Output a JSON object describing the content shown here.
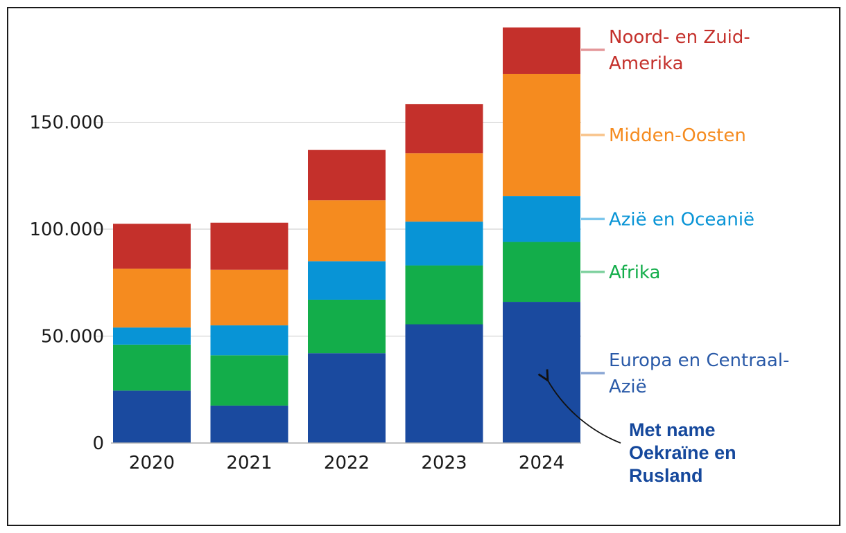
{
  "chart_data": {
    "type": "bar",
    "stacked": true,
    "categories": [
      "2020",
      "2021",
      "2022",
      "2023",
      "2024"
    ],
    "series": [
      {
        "name": "Europa en Centraal-Azië",
        "color": "#1a4a9f",
        "legend_color": "#8aa6d4",
        "values": [
          24500,
          17500,
          42000,
          55500,
          66000
        ]
      },
      {
        "name": "Afrika",
        "color": "#13ad4a",
        "legend_color": "#7fd19f",
        "values": [
          21500,
          23500,
          25000,
          27500,
          28000
        ]
      },
      {
        "name": "Azië en Oceanië",
        "color": "#0894d6",
        "legend_color": "#7cc6ec",
        "values": [
          8000,
          14000,
          18000,
          20500,
          21500
        ]
      },
      {
        "name": "Midden-Oosten",
        "color": "#f58b1f",
        "legend_color": "#f8c38a",
        "values": [
          27500,
          26000,
          28500,
          32000,
          57000
        ]
      },
      {
        "name": "Noord- en Zuid-Amerika",
        "color": "#c4302b",
        "legend_color": "#e4979a",
        "values": [
          21000,
          22000,
          23500,
          23000,
          21800
        ]
      }
    ],
    "yticks": [
      0,
      50000,
      100000,
      150000
    ],
    "ytick_labels": [
      "0",
      "50.000",
      "100.000",
      "150.000"
    ],
    "ylim": [
      0,
      200000
    ],
    "grid": true,
    "legend_position": "right",
    "legend_lines": [
      [
        "Noord- en Zuid-",
        "Amerika"
      ],
      [
        "Midden-Oosten"
      ],
      [
        "Azië en Oceanië"
      ],
      [
        "Afrika"
      ],
      [
        "Europa en Centraal-",
        "Azië"
      ]
    ],
    "annotation": {
      "lines": [
        "Met name",
        "Oekraïne en",
        "Rusland"
      ],
      "target_category": "2024",
      "target_series": "Europa en Centraal-Azië"
    }
  }
}
